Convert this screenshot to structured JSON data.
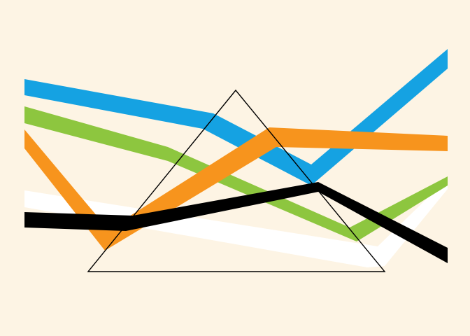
{
  "colors": {
    "background": "#fdf4e4",
    "blue": "#15a2e2",
    "green": "#8dc63f",
    "orange": "#f7941d",
    "black": "#000000",
    "white": "#ffffff",
    "outline": "#000000"
  },
  "bands": [
    {
      "color_key": "white"
    },
    {
      "color_key": "green"
    },
    {
      "color_key": "blue"
    },
    {
      "color_key": "orange"
    },
    {
      "color_key": "black"
    }
  ],
  "triangle": {
    "color_key": "outline"
  }
}
